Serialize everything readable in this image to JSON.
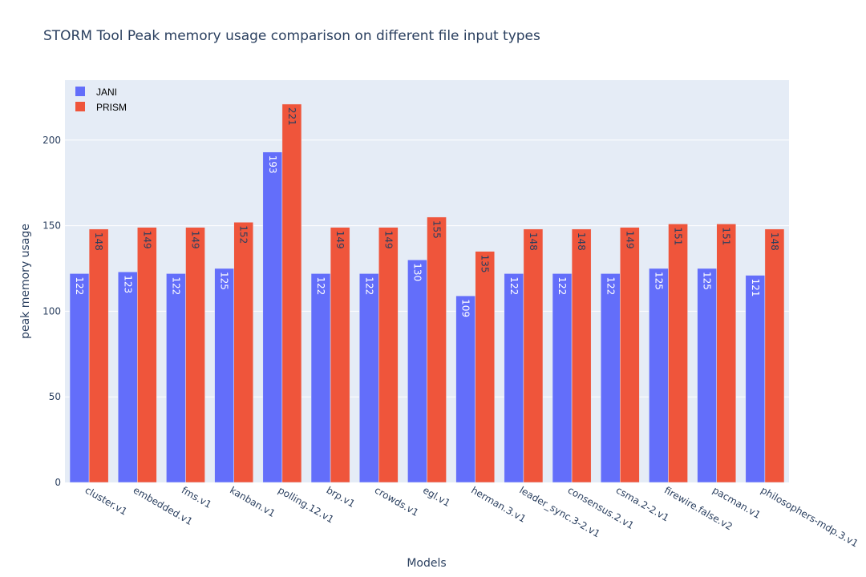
{
  "chart_data": {
    "type": "bar",
    "title": "STORM Tool Peak memory usage comparison on different file input types",
    "xlabel": "Models",
    "ylabel": "peak memory usage",
    "ylim": [
      0,
      235
    ],
    "yticks": [
      0,
      50,
      100,
      150,
      200
    ],
    "grid": true,
    "legend_position": "top-left",
    "categories": [
      "cluster.v1",
      "embedded.v1",
      "fms.v1",
      "kanban.v1",
      "polling.12.v1",
      "brp.v1",
      "crowds.v1",
      "egl.v1",
      "herman.3.v1",
      "leader_sync.3-2.v1",
      "consensus.2.v1",
      "csma.2-2.v1",
      "firewire.false.v2",
      "pacman.v1",
      "philosophers-mdp.3.v1"
    ],
    "series": [
      {
        "name": "JANI",
        "color": "#636efa",
        "label_color": "#ffffff",
        "values": [
          122,
          123,
          122,
          125,
          193,
          122,
          122,
          130,
          109,
          122,
          122,
          122,
          125,
          125,
          121
        ]
      },
      {
        "name": "PRISM",
        "color": "#ef553b",
        "label_color": "#2a3f5f",
        "values": [
          148,
          149,
          149,
          152,
          221,
          149,
          149,
          155,
          135,
          148,
          148,
          149,
          151,
          151,
          148
        ]
      }
    ],
    "colors": {
      "plot_background": "#e5ecf6",
      "grid": "#ffffff",
      "text": "#2a3f5f"
    }
  }
}
